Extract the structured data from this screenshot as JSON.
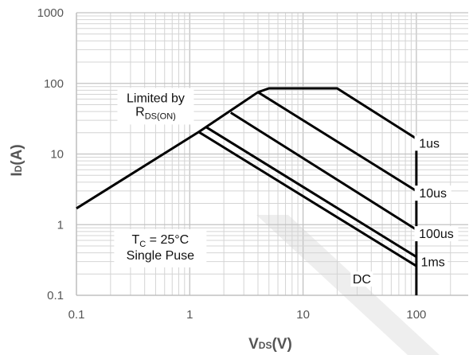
{
  "chart_data": {
    "type": "line",
    "x_scale": "log",
    "y_scale": "log",
    "xlim": [
      0.1,
      100
    ],
    "ylim": [
      0.1,
      1000
    ],
    "xlabel": "VDS(V)",
    "xlabel_parts": {
      "main": "V",
      "sub": "DS",
      "rest": "(V)"
    },
    "ylabel": "ID(A)",
    "ylabel_parts": {
      "main": "I",
      "sub": "D",
      "rest": "(A)"
    },
    "x_ticks": [
      {
        "value": 0.1,
        "label": "0.1"
      },
      {
        "value": 1,
        "label": "1"
      },
      {
        "value": 10,
        "label": "10"
      },
      {
        "value": 100,
        "label": "100"
      }
    ],
    "y_ticks": [
      {
        "value": 0.1,
        "label": "0.1"
      },
      {
        "value": 1,
        "label": "1"
      },
      {
        "value": 10,
        "label": "10"
      },
      {
        "value": 100,
        "label": "100"
      },
      {
        "value": 1000,
        "label": "1000"
      }
    ],
    "grid": true,
    "series": [
      {
        "name": "1us",
        "points": [
          [
            0.1,
            1.7
          ],
          [
            1.2,
            20.5
          ],
          [
            4,
            75
          ],
          [
            5,
            85
          ],
          [
            20,
            85
          ],
          [
            100,
            16.5
          ],
          [
            100,
            0.1
          ]
        ]
      },
      {
        "name": "10us",
        "points": [
          [
            4,
            75
          ],
          [
            100,
            3.0
          ]
        ]
      },
      {
        "name": "100us",
        "points": [
          [
            2.3,
            38.5
          ],
          [
            100,
            0.85
          ]
        ]
      },
      {
        "name": "1ms",
        "points": [
          [
            1.4,
            24
          ],
          [
            100,
            0.35
          ]
        ]
      },
      {
        "name": "DC",
        "points": [
          [
            1.2,
            20.5
          ],
          [
            100,
            0.26
          ]
        ]
      }
    ],
    "series_labels": [
      {
        "series": "1us",
        "text": "1us",
        "x": 130,
        "y": 13
      },
      {
        "series": "10us",
        "text": "10us",
        "x": 140,
        "y": 2.55
      },
      {
        "series": "100us",
        "text": "100us",
        "x": 150,
        "y": 0.68
      },
      {
        "series": "1ms",
        "text": "1ms",
        "x": 140,
        "y": 0.27
      },
      {
        "series": "DC",
        "text": "DC",
        "x": 33,
        "y": 0.155
      }
    ],
    "annotations": [
      {
        "id": "limited-by-rds-on",
        "line1": "Limited by",
        "line2_main": "R",
        "line2_sub": "DS(ON)",
        "x": 0.5,
        "y": 60
      },
      {
        "id": "test-conditions",
        "line1_main": "T",
        "line1_sub": "C",
        "line1_rest": " = 25°C",
        "line2": "Single Puse",
        "x": 0.55,
        "y": 0.6
      }
    ]
  }
}
